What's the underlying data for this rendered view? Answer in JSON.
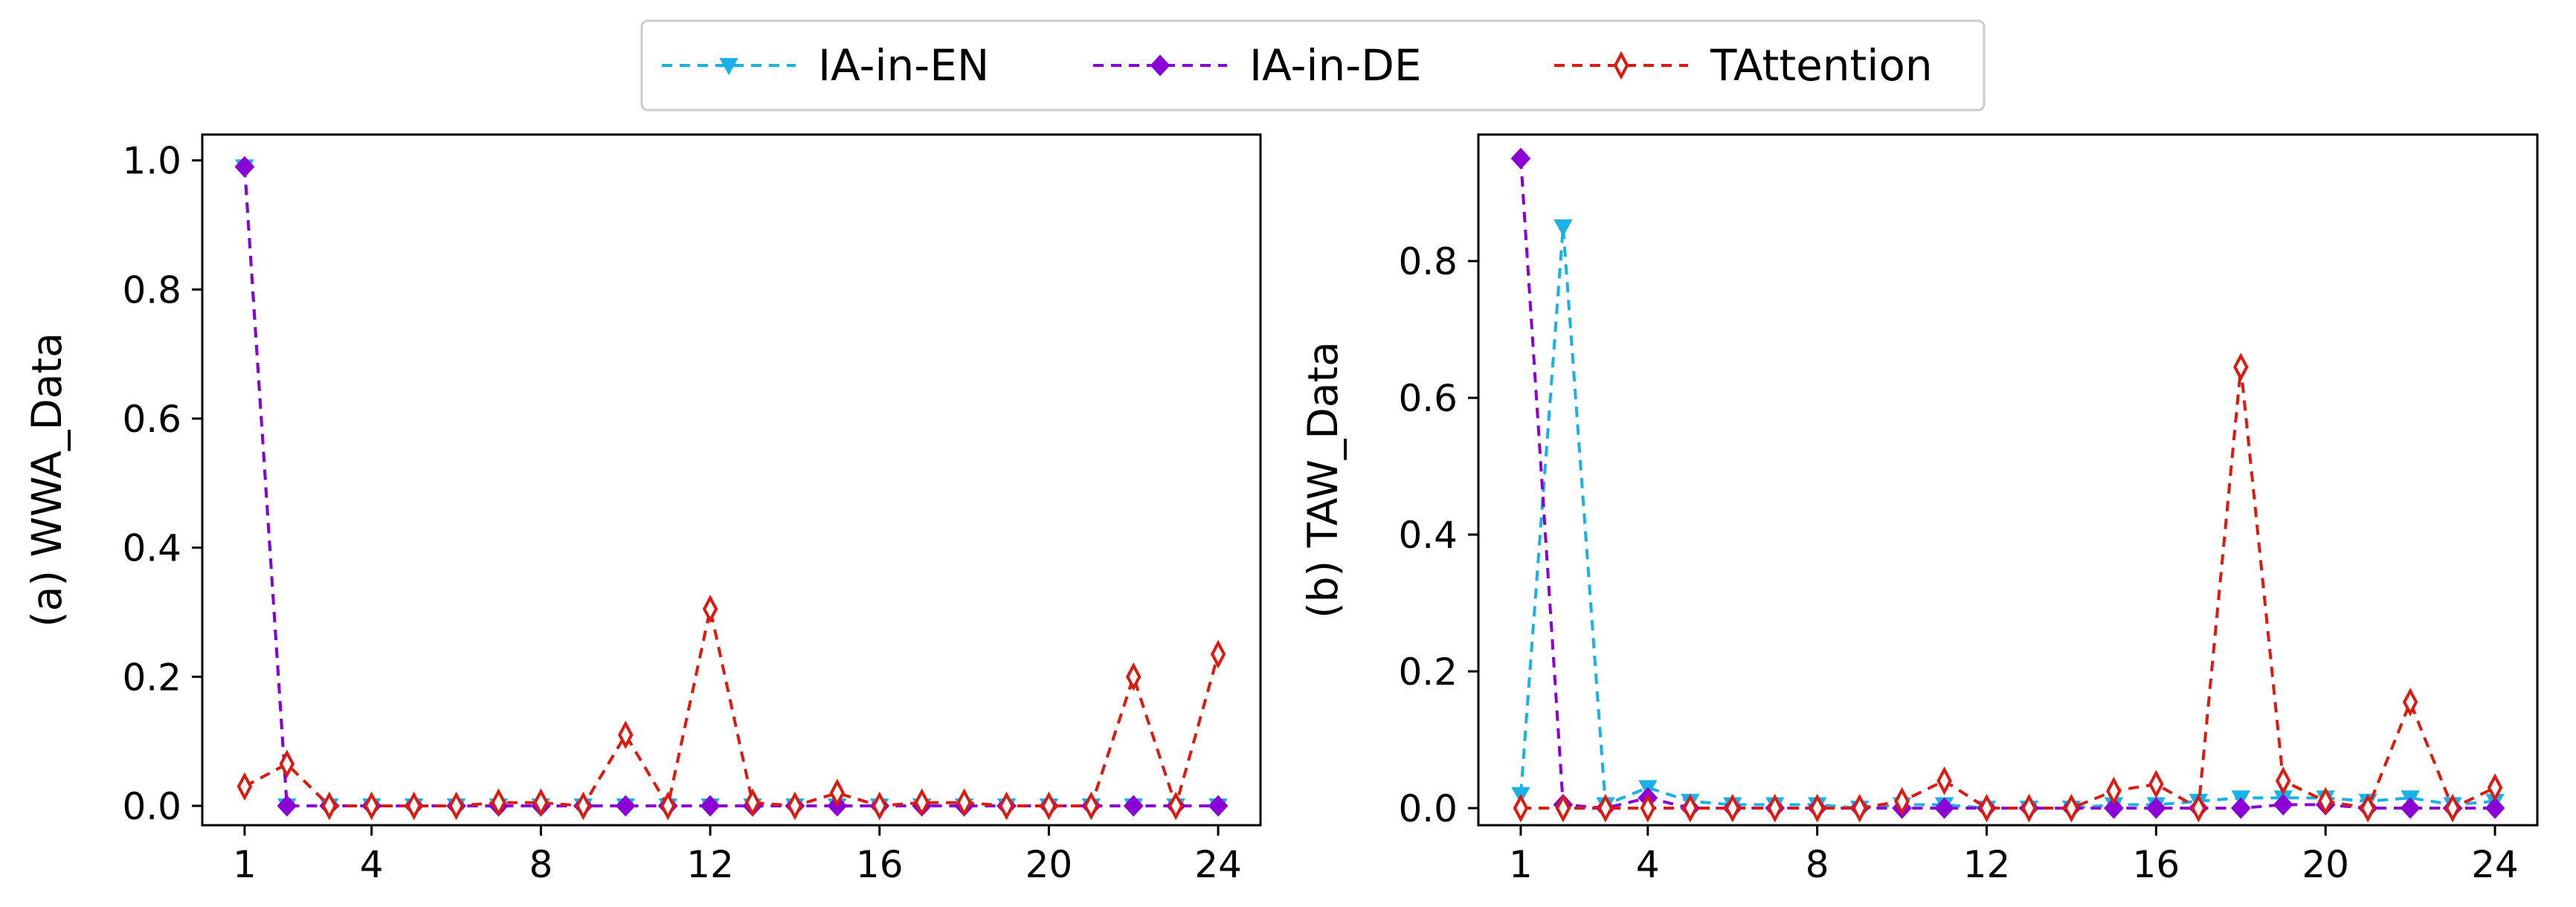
{
  "colors": {
    "IA-in-EN": "#1ab2e6",
    "IA-in-DE": "#8b00d4",
    "TAttention": "#dd1a10"
  },
  "legend": {
    "placement": "top-center",
    "entries": [
      "IA-in-EN",
      "IA-in-DE",
      "TAttention"
    ]
  },
  "chart_data": [
    {
      "type": "line",
      "title": "",
      "xlabel": "",
      "ylabel": "(a) WWA_Data",
      "xlim": [
        0.0,
        25.0
      ],
      "ylim": [
        -0.03,
        1.04
      ],
      "xticks": [
        1,
        4,
        8,
        12,
        16,
        20,
        24
      ],
      "xtick_labels": [
        "1",
        "4",
        "8",
        "12",
        "16",
        "20",
        "24"
      ],
      "yticks": [
        0.0,
        0.2,
        0.4,
        0.6,
        0.8,
        1.0
      ],
      "ytick_labels": [
        "0.0",
        "0.2",
        "0.4",
        "0.6",
        "0.8",
        "1.0"
      ],
      "grid": false,
      "series": [
        {
          "name": "IA-in-EN",
          "marker": "triangle-down",
          "x": [
            1,
            2,
            3,
            4,
            5,
            6,
            7,
            8,
            9,
            10,
            11,
            12,
            13,
            14,
            15,
            16,
            17,
            18,
            19,
            20,
            21,
            22,
            23,
            24
          ],
          "y": [
            0.99,
            0.0,
            0.0,
            0.0,
            0.0,
            0.0,
            0.0,
            0.0,
            0.0,
            0.0,
            0.0,
            0.0,
            0.0,
            0.0,
            0.0,
            0.0,
            0.0,
            0.0,
            0.0,
            0.0,
            0.0,
            0.0,
            0.0,
            0.0
          ]
        },
        {
          "name": "IA-in-DE",
          "marker": "diamond",
          "x": [
            1,
            2,
            3,
            4,
            5,
            6,
            7,
            8,
            9,
            10,
            11,
            12,
            13,
            14,
            15,
            16,
            17,
            18,
            19,
            20,
            21,
            22,
            23,
            24
          ],
          "y": [
            0.99,
            0.0,
            0.0,
            0.0,
            0.0,
            0.0,
            0.0,
            0.0,
            0.0,
            0.0,
            0.0,
            0.0,
            0.0,
            0.0,
            0.0,
            0.0,
            0.0,
            0.0,
            0.0,
            0.0,
            0.0,
            0.0,
            0.0,
            0.0
          ]
        },
        {
          "name": "TAttention",
          "marker": "thin-diamond",
          "x": [
            1,
            2,
            3,
            4,
            5,
            6,
            7,
            8,
            9,
            10,
            11,
            12,
            13,
            14,
            15,
            16,
            17,
            18,
            19,
            20,
            21,
            22,
            23,
            24
          ],
          "y": [
            0.03,
            0.065,
            0.0,
            0.0,
            0.0,
            0.0,
            0.005,
            0.005,
            0.0,
            0.11,
            0.0,
            0.305,
            0.005,
            0.0,
            0.02,
            0.0,
            0.005,
            0.005,
            0.0,
            0.0,
            0.0,
            0.2,
            0.0,
            0.235
          ]
        }
      ]
    },
    {
      "type": "line",
      "title": "",
      "xlabel": "",
      "ylabel": "(b) TAW_Data",
      "xlim": [
        0.0,
        25.0
      ],
      "ylim": [
        -0.025,
        0.985
      ],
      "xticks": [
        1,
        4,
        8,
        12,
        16,
        20,
        24
      ],
      "xtick_labels": [
        "1",
        "4",
        "8",
        "12",
        "16",
        "20",
        "24"
      ],
      "yticks": [
        0.0,
        0.2,
        0.4,
        0.6,
        0.8
      ],
      "ytick_labels": [
        "0.0",
        "0.2",
        "0.4",
        "0.6",
        "0.8"
      ],
      "grid": false,
      "series": [
        {
          "name": "IA-in-EN",
          "marker": "triangle-down",
          "x": [
            1,
            2,
            3,
            4,
            5,
            6,
            7,
            8,
            9,
            10,
            11,
            12,
            13,
            14,
            15,
            16,
            17,
            18,
            19,
            20,
            21,
            22,
            23,
            24
          ],
          "y": [
            0.02,
            0.85,
            0.005,
            0.03,
            0.01,
            0.005,
            0.005,
            0.005,
            0.0,
            0.005,
            0.005,
            0.0,
            0.0,
            0.0,
            0.005,
            0.005,
            0.01,
            0.015,
            0.015,
            0.015,
            0.01,
            0.015,
            0.005,
            0.01
          ]
        },
        {
          "name": "IA-in-DE",
          "marker": "diamond",
          "x": [
            1,
            2,
            3,
            4,
            5,
            6,
            7,
            8,
            9,
            10,
            11,
            12,
            13,
            14,
            15,
            16,
            17,
            18,
            19,
            20,
            21,
            22,
            23,
            24
          ],
          "y": [
            0.95,
            0.005,
            0.0,
            0.015,
            0.0,
            0.0,
            0.0,
            0.0,
            0.0,
            0.0,
            0.0,
            0.0,
            0.0,
            0.0,
            0.0,
            0.0,
            0.0,
            0.0,
            0.005,
            0.005,
            0.0,
            0.0,
            0.0,
            0.0
          ]
        },
        {
          "name": "TAttention",
          "marker": "thin-diamond",
          "x": [
            1,
            2,
            3,
            4,
            5,
            6,
            7,
            8,
            9,
            10,
            11,
            12,
            13,
            14,
            15,
            16,
            17,
            18,
            19,
            20,
            21,
            22,
            23,
            24
          ],
          "y": [
            0.0,
            0.0,
            0.0,
            0.0,
            0.0,
            0.0,
            0.0,
            0.0,
            0.0,
            0.01,
            0.04,
            0.0,
            0.0,
            0.0,
            0.025,
            0.035,
            0.0,
            0.645,
            0.04,
            0.01,
            0.0,
            0.155,
            0.0,
            0.03
          ]
        }
      ]
    }
  ]
}
